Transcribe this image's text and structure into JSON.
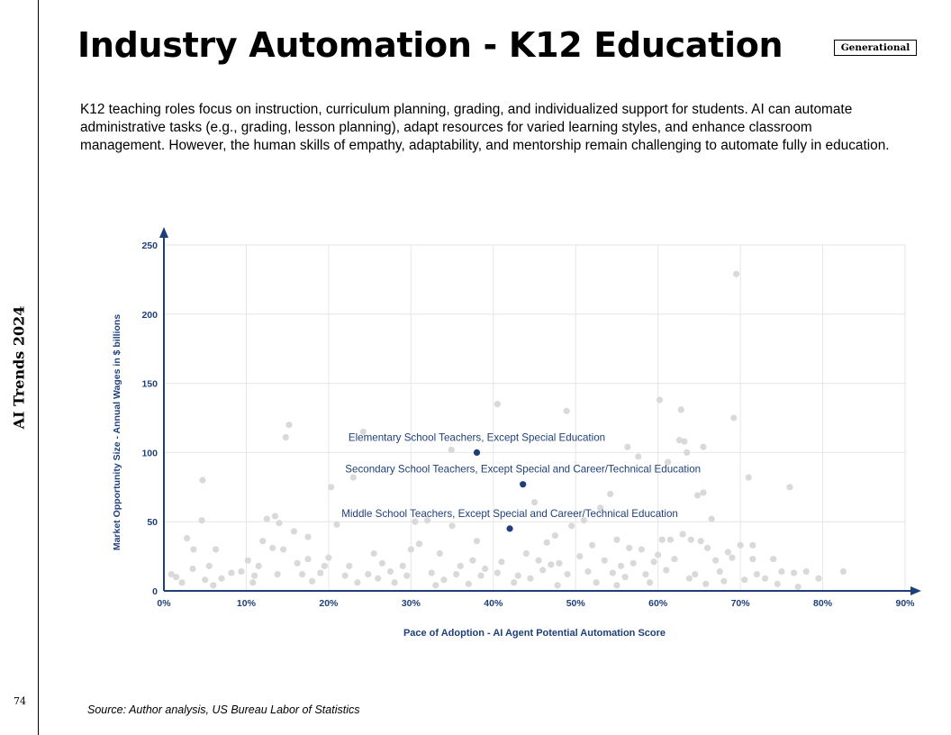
{
  "sidebar": {
    "title": "AI Trends 2024",
    "page_number": "74"
  },
  "header": {
    "title": "Industry Automation - K12 Education",
    "badge": "Generational"
  },
  "description": "K12 teaching roles focus on instruction, curriculum planning, grading, and individualized support for students. AI can automate administrative tasks (e.g., grading, lesson planning), adapt resources for varied learning styles, and enhance classroom management. However, the human skills of empathy, adaptability, and mentorship remain challenging to automate fully in education.",
  "source": "Source: Author analysis, US Bureau Labor of Statistics",
  "colors": {
    "highlight": "#1f3f7a",
    "background_points": "#d9d9d9",
    "axis": "#1f3f7a",
    "grid": "#e6e6e6"
  },
  "chart_data": {
    "type": "scatter",
    "xlabel": "Pace of Adoption - AI Agent Potential Automation Score",
    "ylabel": "Market Opportunity Size - Annual Wages in $ billions",
    "xlim": [
      0,
      90
    ],
    "ylim": [
      0,
      250
    ],
    "x_ticks": [
      0,
      10,
      20,
      30,
      40,
      50,
      60,
      70,
      80,
      90
    ],
    "x_tick_labels": [
      "0%",
      "10%",
      "20%",
      "30%",
      "40%",
      "50%",
      "60%",
      "70%",
      "80%",
      "90%"
    ],
    "y_ticks": [
      0,
      50,
      100,
      150,
      200,
      250
    ],
    "y_tick_labels": [
      "0",
      "50",
      "100",
      "150",
      "200",
      "250"
    ],
    "grid": true,
    "highlighted": [
      {
        "label": "Elementary School Teachers, Except Special Education",
        "x": 38,
        "y": 100
      },
      {
        "label": "Secondary School Teachers, Except Special and Career/Technical Education",
        "x": 43.6,
        "y": 77
      },
      {
        "label": "Middle School Teachers, Except Special and Career/Technical Education",
        "x": 42,
        "y": 45
      }
    ],
    "background_points": [
      [
        69.5,
        229
      ],
      [
        60.2,
        138
      ],
      [
        40.5,
        135
      ],
      [
        62.8,
        131
      ],
      [
        48.9,
        130
      ],
      [
        69.2,
        125
      ],
      [
        15.2,
        120
      ],
      [
        14.8,
        111
      ],
      [
        24.2,
        115
      ],
      [
        62.6,
        109
      ],
      [
        63.2,
        108
      ],
      [
        65.5,
        104
      ],
      [
        56.3,
        104
      ],
      [
        34.9,
        102
      ],
      [
        63.5,
        100
      ],
      [
        57.6,
        97
      ],
      [
        61.2,
        93
      ],
      [
        71,
        82
      ],
      [
        23,
        82
      ],
      [
        4.7,
        80
      ],
      [
        20.3,
        75
      ],
      [
        76,
        75
      ],
      [
        65.5,
        71
      ],
      [
        64.8,
        69
      ],
      [
        54.2,
        70
      ],
      [
        45,
        64
      ],
      [
        12.5,
        52
      ],
      [
        13.5,
        54
      ],
      [
        14,
        49
      ],
      [
        4.6,
        51
      ],
      [
        21,
        48
      ],
      [
        30.5,
        50
      ],
      [
        32,
        51
      ],
      [
        35,
        47
      ],
      [
        49.5,
        47
      ],
      [
        51,
        51
      ],
      [
        53,
        60
      ],
      [
        66.5,
        52
      ],
      [
        15.8,
        43
      ],
      [
        17.5,
        39
      ],
      [
        2.8,
        38
      ],
      [
        3.6,
        30
      ],
      [
        6.3,
        30
      ],
      [
        12,
        36
      ],
      [
        13.2,
        31
      ],
      [
        14.5,
        30
      ],
      [
        31,
        34
      ],
      [
        38,
        36
      ],
      [
        46.5,
        35
      ],
      [
        47.5,
        40
      ],
      [
        52,
        33
      ],
      [
        55,
        37
      ],
      [
        56.5,
        31
      ],
      [
        58,
        30
      ],
      [
        60.5,
        37
      ],
      [
        61.5,
        37
      ],
      [
        63,
        41
      ],
      [
        64,
        37
      ],
      [
        65.2,
        36
      ],
      [
        70,
        33
      ],
      [
        71.5,
        33
      ],
      [
        68.5,
        28
      ],
      [
        10.2,
        22
      ],
      [
        11.5,
        18
      ],
      [
        9.4,
        14
      ],
      [
        1.5,
        10
      ],
      [
        3.5,
        16
      ],
      [
        5.5,
        18
      ],
      [
        8.2,
        13
      ],
      [
        16.2,
        20
      ],
      [
        17.5,
        23
      ],
      [
        19.5,
        18
      ],
      [
        22.5,
        18
      ],
      [
        25.5,
        27
      ],
      [
        26.5,
        20
      ],
      [
        29,
        18
      ],
      [
        33.5,
        27
      ],
      [
        36,
        18
      ],
      [
        37.5,
        22
      ],
      [
        39,
        16
      ],
      [
        44,
        27
      ],
      [
        45.5,
        22
      ],
      [
        47,
        19
      ],
      [
        50.5,
        25
      ],
      [
        53.5,
        22
      ],
      [
        55.5,
        18
      ],
      [
        57,
        20
      ],
      [
        59.5,
        21
      ],
      [
        62,
        23
      ],
      [
        67,
        22
      ],
      [
        69,
        24
      ],
      [
        71.5,
        23
      ],
      [
        74,
        23
      ],
      [
        75,
        14
      ],
      [
        76.5,
        13
      ],
      [
        78,
        14
      ],
      [
        79.5,
        9
      ],
      [
        82.5,
        14
      ],
      [
        73,
        9
      ],
      [
        72,
        12
      ],
      [
        67.5,
        14
      ],
      [
        64.5,
        12
      ],
      [
        61,
        15
      ],
      [
        58.5,
        12
      ],
      [
        54.5,
        13
      ],
      [
        51.5,
        14
      ],
      [
        49,
        12
      ],
      [
        46,
        15
      ],
      [
        43,
        11
      ],
      [
        40.5,
        13
      ],
      [
        38.5,
        11
      ],
      [
        35.5,
        12
      ],
      [
        32.5,
        13
      ],
      [
        29.5,
        11
      ],
      [
        27.5,
        14
      ],
      [
        24.8,
        12
      ],
      [
        22,
        11
      ],
      [
        19,
        13
      ],
      [
        16.8,
        12
      ],
      [
        13.8,
        12
      ],
      [
        11,
        11
      ],
      [
        7,
        9
      ],
      [
        5,
        8
      ],
      [
        2.2,
        6
      ],
      [
        0.9,
        12
      ],
      [
        20,
        24
      ],
      [
        30,
        30
      ],
      [
        41,
        21
      ],
      [
        48,
        20
      ],
      [
        60,
        26
      ],
      [
        66,
        31
      ],
      [
        26,
        9
      ],
      [
        34,
        8
      ],
      [
        44.5,
        9
      ],
      [
        56,
        10
      ],
      [
        63.8,
        9
      ],
      [
        70.5,
        8
      ],
      [
        6,
        4
      ],
      [
        18,
        7
      ],
      [
        28,
        6
      ],
      [
        37,
        5
      ],
      [
        52.5,
        6
      ],
      [
        65.8,
        5
      ],
      [
        77,
        3
      ],
      [
        10.8,
        6
      ],
      [
        33,
        4
      ],
      [
        47.8,
        4
      ],
      [
        59,
        6
      ],
      [
        68,
        7
      ],
      [
        74.5,
        5
      ],
      [
        23.5,
        6
      ],
      [
        42.5,
        6
      ],
      [
        55,
        4
      ]
    ]
  }
}
